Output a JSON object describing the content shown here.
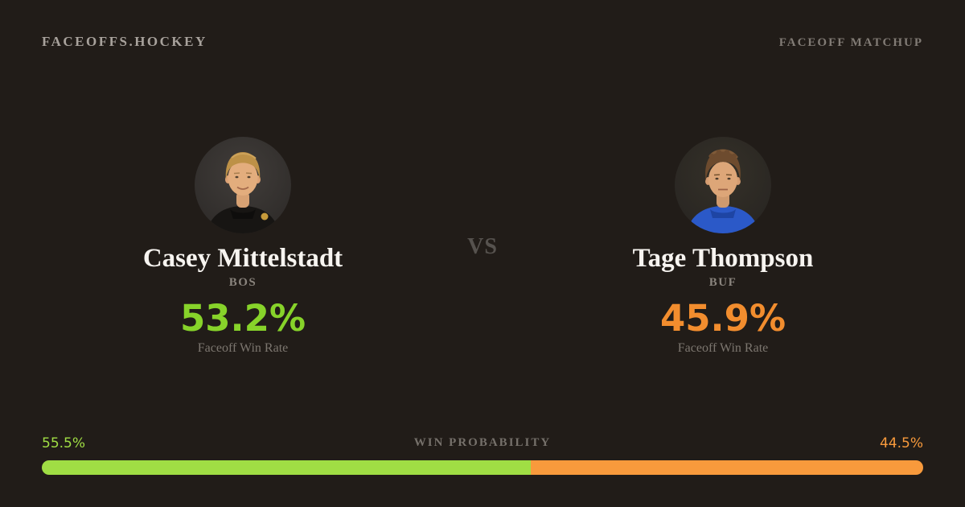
{
  "page": {
    "background": "#211c18"
  },
  "header": {
    "brand": "FACEOFFS.HOCKEY",
    "page_label": "FACEOFF MATCHUP"
  },
  "matchup": {
    "vs_label": "VS",
    "left_player": {
      "name": "Casey Mittelstadt",
      "team": "BOS",
      "faceoff_win_rate": "53.2%",
      "stat_label": "Faceoff Win Rate",
      "accent_color": "#87d32a",
      "avatar_icon": "casey-mittelstadt-headshot"
    },
    "right_player": {
      "name": "Tage Thompson",
      "team": "BUF",
      "faceoff_win_rate": "45.9%",
      "stat_label": "Faceoff Win Rate",
      "accent_color": "#f28d2e",
      "avatar_icon": "tage-thompson-headshot"
    }
  },
  "win_probability": {
    "title": "WIN PROBABILITY",
    "left": {
      "label": "55.5%",
      "value": 55.5,
      "color": "#a0de44"
    },
    "right": {
      "label": "44.5%",
      "value": 44.5,
      "color": "#f89a3c"
    }
  },
  "chart_data": {
    "type": "bar",
    "title": "WIN PROBABILITY",
    "categories": [
      "Casey Mittelstadt (BOS)",
      "Tage Thompson (BUF)"
    ],
    "values": [
      55.5,
      44.5
    ],
    "xlabel": "",
    "ylabel": "Win Probability (%)",
    "ylim": [
      0,
      100
    ],
    "legend_position": "none",
    "grid": false,
    "annotations": [
      "53.2% Faceoff Win Rate (BOS)",
      "45.9% Faceoff Win Rate (BUF)"
    ]
  }
}
